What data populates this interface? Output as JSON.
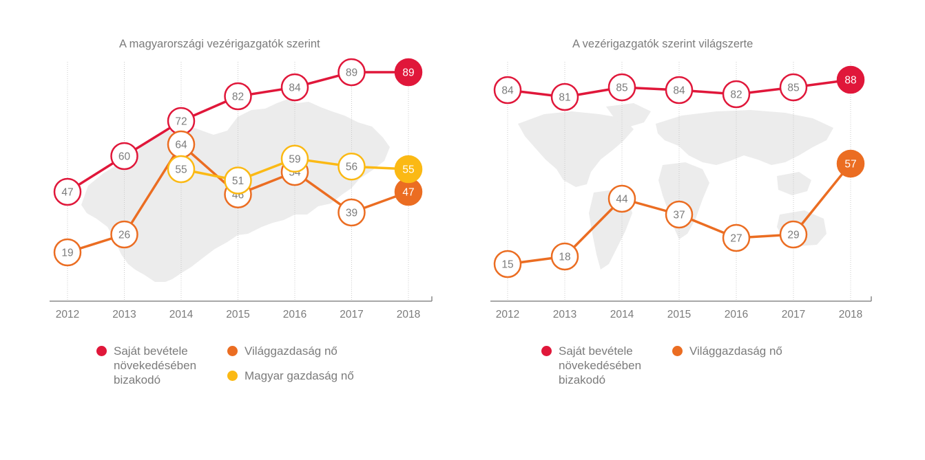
{
  "colors": {
    "red": "#e0173a",
    "orange": "#eb6d22",
    "yellow": "#fbb914",
    "axis": "#8a8a8a",
    "text": "#7b7b7b",
    "map": "#ececec"
  },
  "chart_data": [
    {
      "type": "line",
      "title": "A magyarországi vezérigazgatók szerint",
      "background_map": "hungary-map",
      "x": [
        "2012",
        "2013",
        "2014",
        "2015",
        "2016",
        "2017",
        "2018"
      ],
      "xlabel": "",
      "ylabel": "",
      "ylim": [
        10,
        95
      ],
      "grid": "vertical dotted guides",
      "series": [
        {
          "name": "Saját bevétele növekedésében bizakodó",
          "color": "#e0173a",
          "values": [
            47,
            60,
            72,
            82,
            84,
            89,
            89
          ]
        },
        {
          "name": "Világgazdaság nő",
          "color": "#eb6d22",
          "values": [
            19,
            26,
            64,
            46,
            54,
            39,
            47
          ]
        },
        {
          "name": "Magyar gazdaság nő",
          "color": "#fbb914",
          "values": [
            null,
            null,
            55,
            51,
            59,
            56,
            55
          ]
        }
      ],
      "legend": [
        {
          "label_lines": [
            "Saját bevétele",
            "növekedésében",
            "bizakodó"
          ],
          "color": "#e0173a"
        },
        {
          "label_lines": [
            "Világgazdaság nő"
          ],
          "color": "#eb6d22"
        },
        {
          "label_lines": [
            "Magyar gazdaság nő"
          ],
          "color": "#fbb914"
        }
      ],
      "legend_placement": "bottom"
    },
    {
      "type": "line",
      "title": "A vezérigazgatók szerint világszerte",
      "background_map": "world-map",
      "x": [
        "2012",
        "2013",
        "2014",
        "2015",
        "2016",
        "2017",
        "2018"
      ],
      "xlabel": "",
      "ylabel": "",
      "ylim": [
        10,
        95
      ],
      "grid": "vertical dotted guides",
      "series": [
        {
          "name": "Saját bevétele növekedésében bizakodó",
          "color": "#e0173a",
          "values": [
            84,
            81,
            85,
            84,
            82,
            85,
            88
          ]
        },
        {
          "name": "Világgazdaság nő",
          "color": "#eb6d22",
          "values": [
            15,
            18,
            44,
            37,
            27,
            29,
            57
          ]
        }
      ],
      "legend": [
        {
          "label_lines": [
            "Saját bevétele",
            "növekedésében",
            "bizakodó"
          ],
          "color": "#e0173a"
        },
        {
          "label_lines": [
            "Világgazdaság nő"
          ],
          "color": "#eb6d22"
        }
      ],
      "legend_placement": "bottom"
    }
  ]
}
